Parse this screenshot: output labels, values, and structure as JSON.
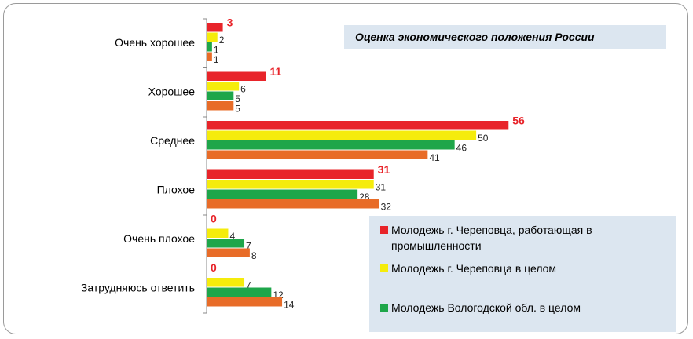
{
  "chart_data": {
    "type": "hbar",
    "title": "Оценка экономического положения России",
    "categories": [
      "Очень хорошее",
      "Хорошее",
      "Среднее",
      "Плохое",
      "Очень плохое",
      "Затрудняюсь ответить"
    ],
    "series": [
      {
        "name": "Молодежь г. Череповца, работающая в промышленности",
        "color": "#e8242a",
        "values": [
          3,
          11,
          56,
          31,
          0,
          0
        ]
      },
      {
        "name": "Молодежь г. Череповца в целом",
        "color": "#f5ec0c",
        "values": [
          2,
          6,
          50,
          31,
          4,
          7
        ]
      },
      {
        "name": "Молодежь Вологодской обл. в целом",
        "color": "#1ea64a",
        "values": [
          1,
          5,
          46,
          28,
          7,
          12
        ]
      },
      {
        "color": "#e86c28",
        "values": [
          1,
          5,
          41,
          32,
          8,
          14
        ]
      }
    ],
    "xlim": [
      0,
      87
    ]
  }
}
